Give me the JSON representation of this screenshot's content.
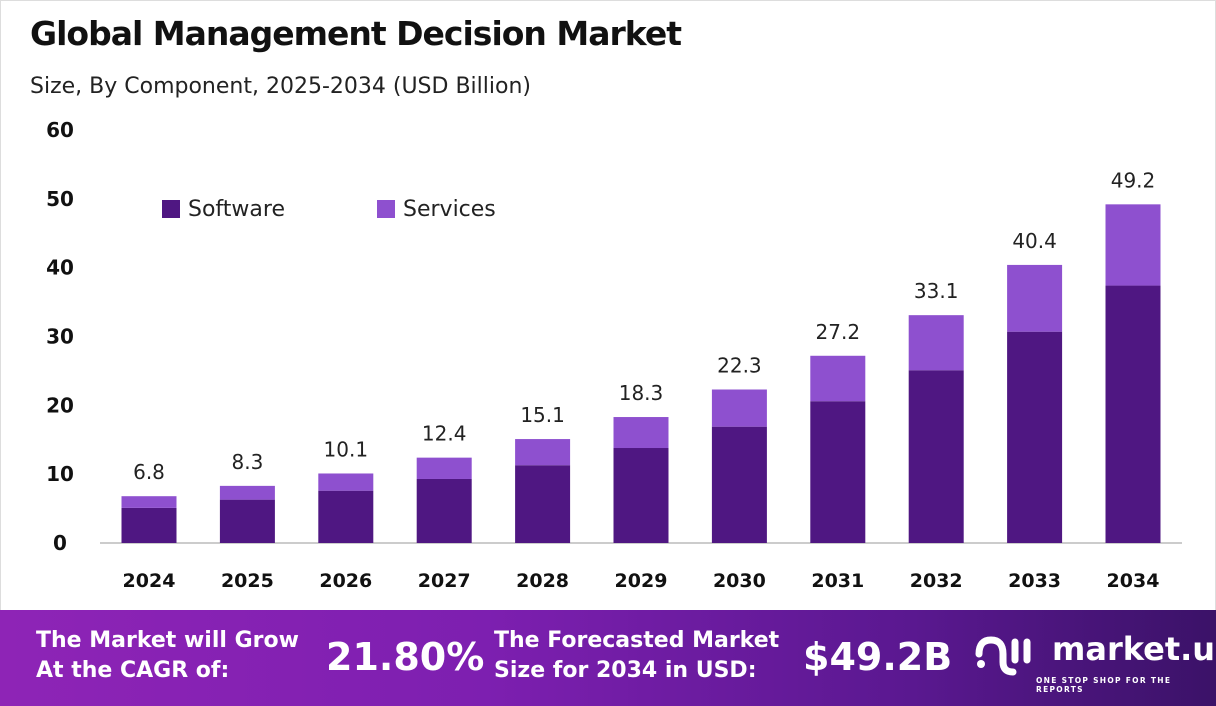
{
  "title": "Global Management Decision Market",
  "subtitle": "Size, By Component, 2025-2034 (USD Billion)",
  "chart_data": {
    "type": "bar",
    "stacked": true,
    "categories": [
      "2024",
      "2025",
      "2026",
      "2027",
      "2028",
      "2029",
      "2030",
      "2031",
      "2032",
      "2033",
      "2034"
    ],
    "series": [
      {
        "name": "Software",
        "color": "#4f1782",
        "values": [
          5.1,
          6.3,
          7.6,
          9.3,
          11.3,
          13.8,
          16.9,
          20.6,
          25.1,
          30.7,
          37.4
        ]
      },
      {
        "name": "Services",
        "color": "#8e50cf",
        "values": [
          1.7,
          2.0,
          2.5,
          3.1,
          3.8,
          4.5,
          5.4,
          6.6,
          8.0,
          9.7,
          11.8
        ]
      }
    ],
    "totals": [
      "6.8",
      "8.3",
      "10.1",
      "12.4",
      "15.1",
      "18.3",
      "22.3",
      "27.2",
      "33.1",
      "40.4",
      "49.2"
    ],
    "yticks": [
      0,
      10,
      20,
      30,
      40,
      50,
      60
    ],
    "ylim": [
      0,
      60
    ],
    "legend_position": "top-left",
    "grid": false
  },
  "banner": {
    "cagr_label": "The Market will Grow At the CAGR of:",
    "cagr_line1": "The Market will Grow",
    "cagr_line2": "At the CAGR of:",
    "cagr_value": "21.80%",
    "forecast_line1": "The Forecasted Market",
    "forecast_line2": "Size for 2034 in USD:",
    "forecast_value": "$49.2B",
    "logo_name": "market.us",
    "logo_tagline": "ONE STOP SHOP FOR THE REPORTS"
  }
}
